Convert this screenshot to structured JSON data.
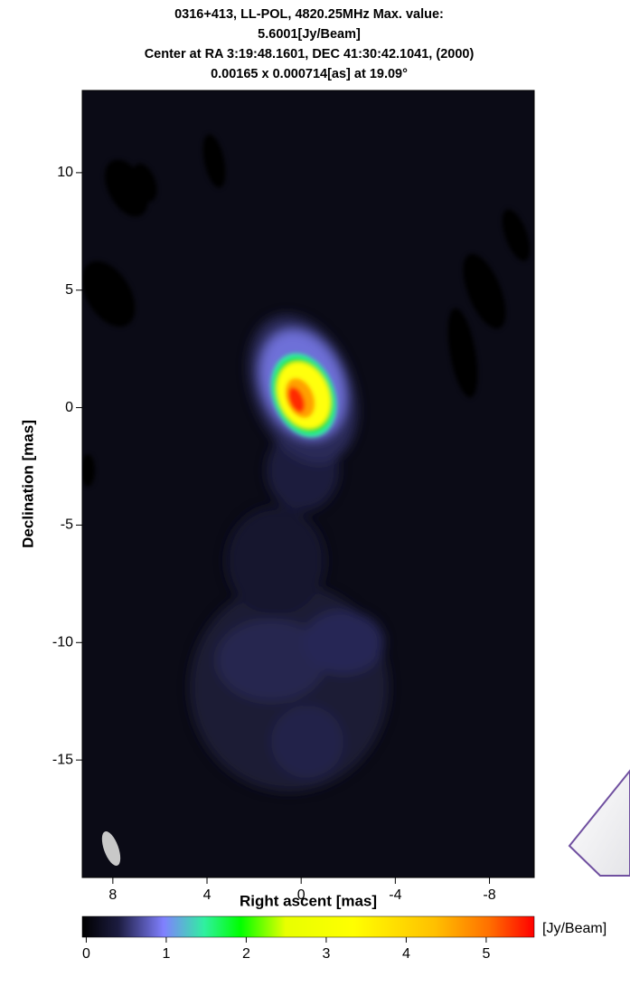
{
  "chart_data": {
    "type": "image",
    "title": [
      "0316+413, LL-POL, 4820.25MHz Max. value:",
      "5.6001[Jy/Beam]",
      "Center at RA 3:19:48.1601, DEC 41:30:42.1041, (2000)",
      "0.00165 x 0.000714[as] at 19.09°"
    ],
    "x_label": "Right ascent [mas]",
    "y_label": "Declination [mas]",
    "xlim": [
      9.3,
      -9.9
    ],
    "xticks": [
      8,
      4,
      0,
      -4,
      -8
    ],
    "ylim": [
      13.5,
      -20
    ],
    "yticks": [
      10,
      5,
      0,
      -5,
      -10,
      -15
    ],
    "colorbar": {
      "label": "[Jy/Beam]",
      "lim": [
        -0.05,
        5.6
      ],
      "ticks": [
        0,
        1,
        2,
        3,
        4,
        5
      ]
    }
  }
}
